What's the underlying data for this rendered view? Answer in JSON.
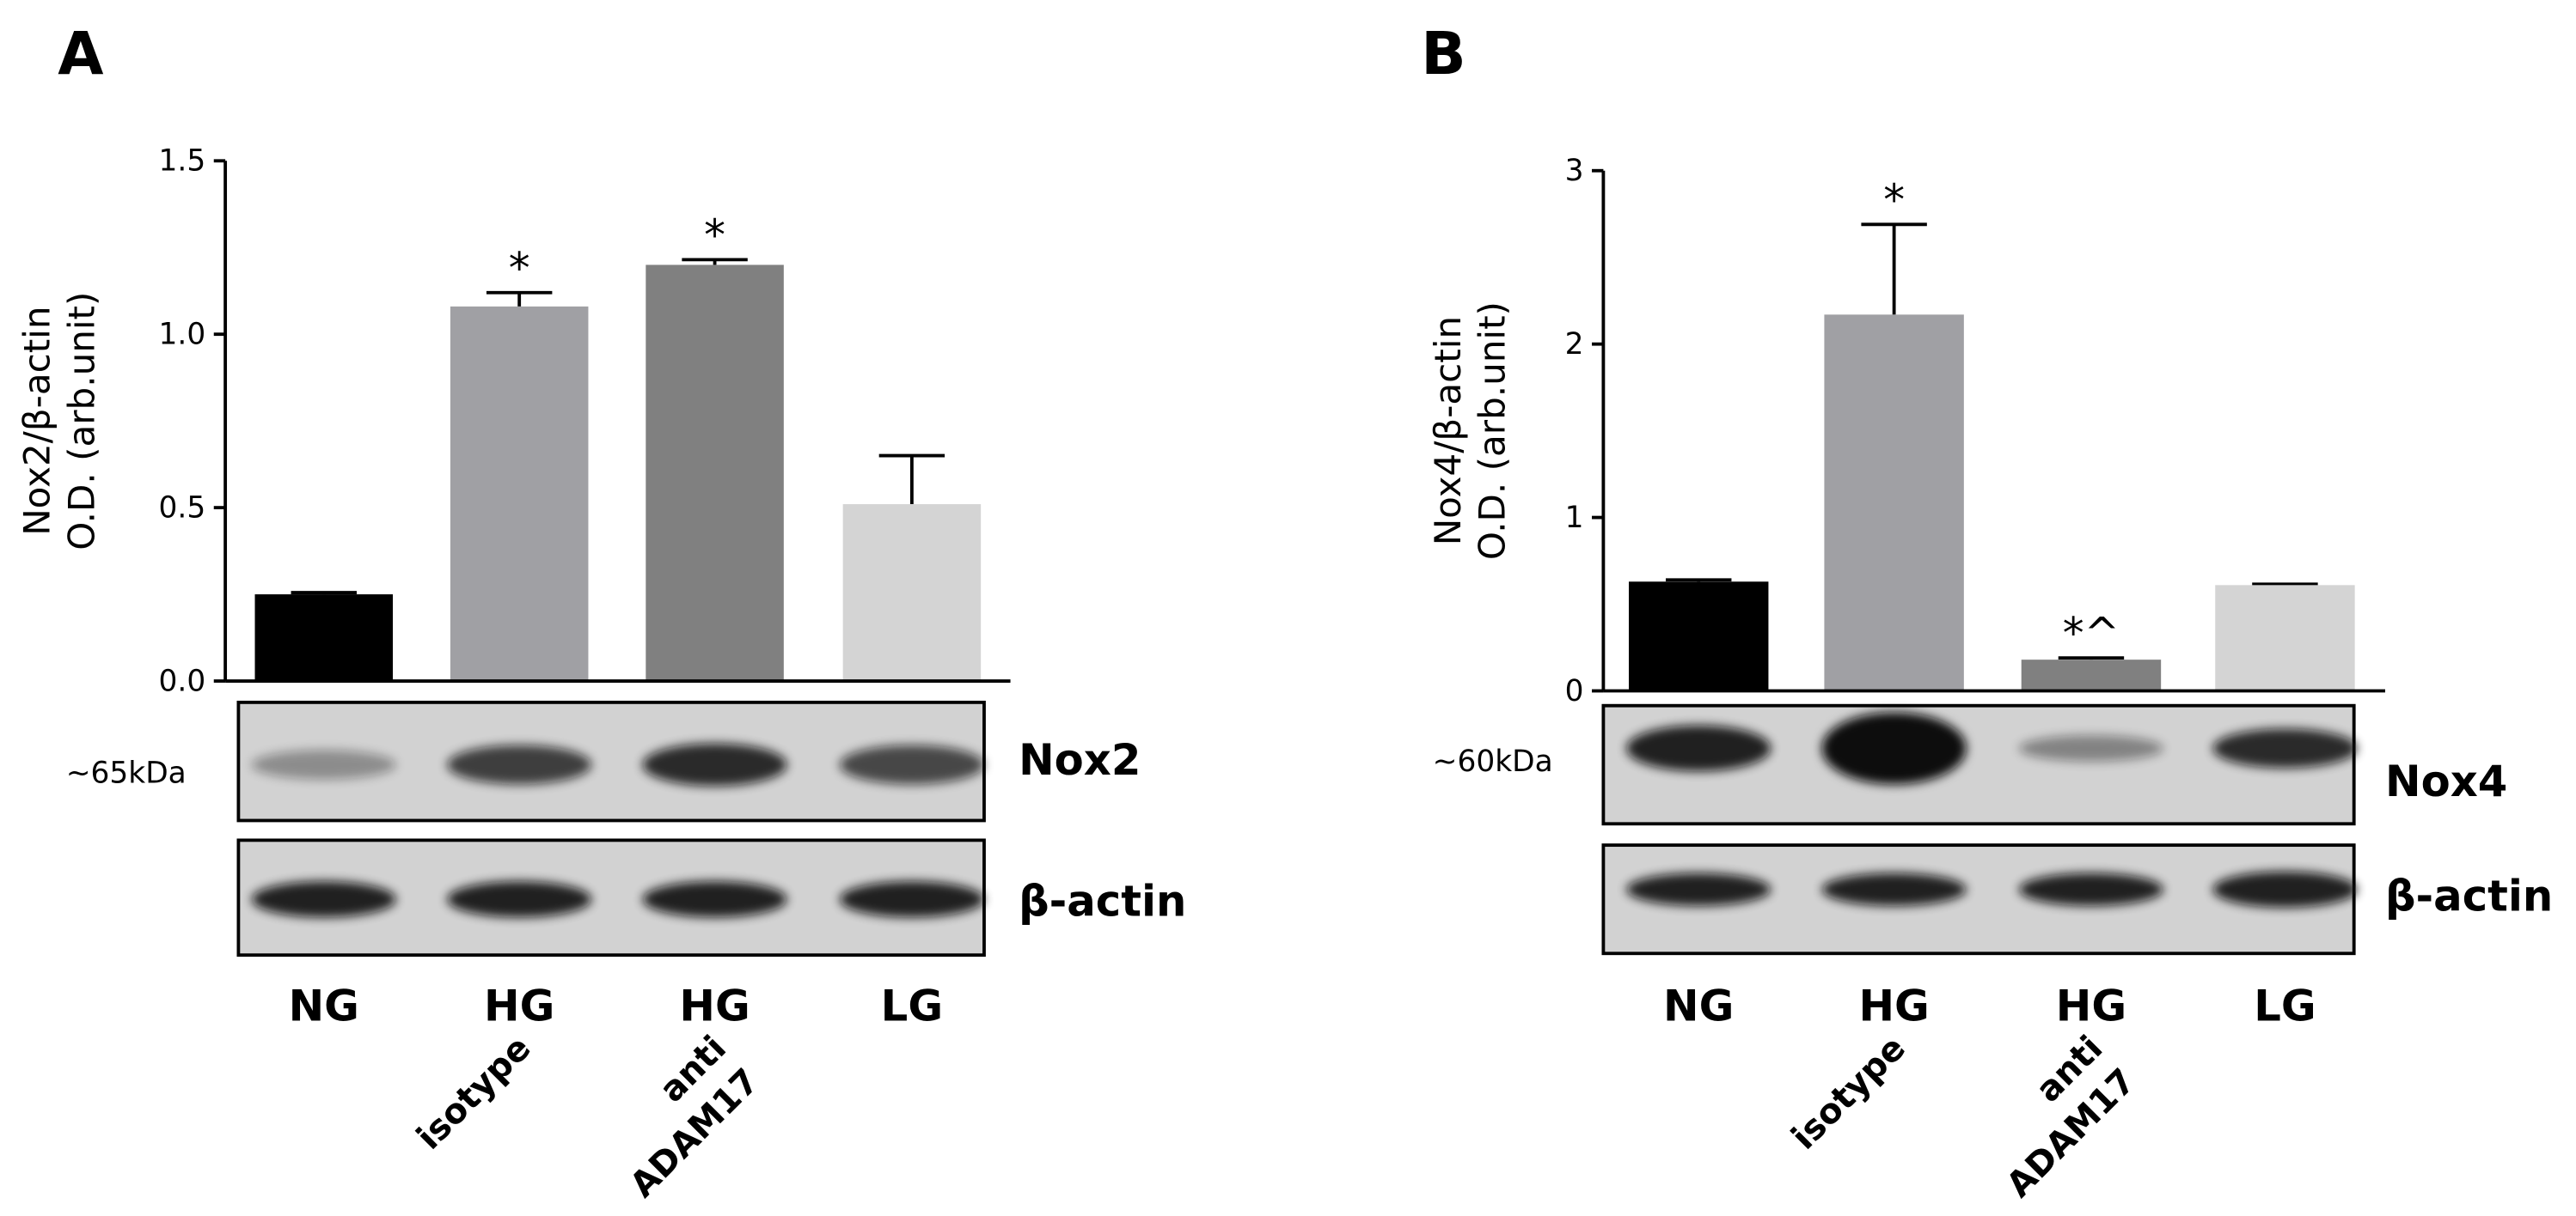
{
  "chart_data": [
    {
      "type": "bar",
      "panel": "A",
      "ylabel": [
        "Nox2/β-actin",
        "O.D. (arb.unit)"
      ],
      "categories": [
        "NG",
        "HG",
        "HG",
        "LG"
      ],
      "sublabels": [
        null,
        [
          "isotype"
        ],
        [
          "anti",
          "ADAM17"
        ],
        null
      ],
      "values": [
        0.25,
        1.08,
        1.2,
        0.51
      ],
      "errors": [
        0.005,
        0.04,
        0.015,
        0.14
      ],
      "bar_labels": [
        null,
        "*",
        "*",
        null
      ],
      "colors": [
        "#000000",
        "#a0a0a4",
        "#808080",
        "#d4d4d4"
      ],
      "ylim": [
        0,
        1.5
      ],
      "yticks": [
        {
          "value": 0,
          "label": "0.0"
        },
        0.5,
        {
          "value": 1,
          "label": "1.0"
        },
        1.5
      ],
      "blot": {
        "marker": "~65kDa",
        "target": "Nox2",
        "control": "β-actin"
      }
    },
    {
      "type": "bar",
      "panel": "B",
      "ylabel": [
        "Nox4/β-actin",
        "O.D. (arb.unit)"
      ],
      "categories": [
        "NG",
        "HG",
        "HG",
        "LG"
      ],
      "sublabels": [
        null,
        [
          "isotype"
        ],
        [
          "anti",
          "ADAM17"
        ],
        null
      ],
      "values": [
        0.63,
        2.17,
        0.18,
        0.61
      ],
      "errors": [
        0.01,
        0.52,
        0.01,
        0.005
      ],
      "bar_labels": [
        null,
        "*",
        "*^",
        null
      ],
      "colors": [
        "#000000",
        "#a0a0a4",
        "#808080",
        "#d4d4d4"
      ],
      "ylim": [
        0,
        3
      ],
      "yticks": [
        0,
        1,
        2,
        3
      ],
      "blot": {
        "marker": "~60kDa",
        "target": "Nox4",
        "control": "β-actin"
      }
    }
  ]
}
